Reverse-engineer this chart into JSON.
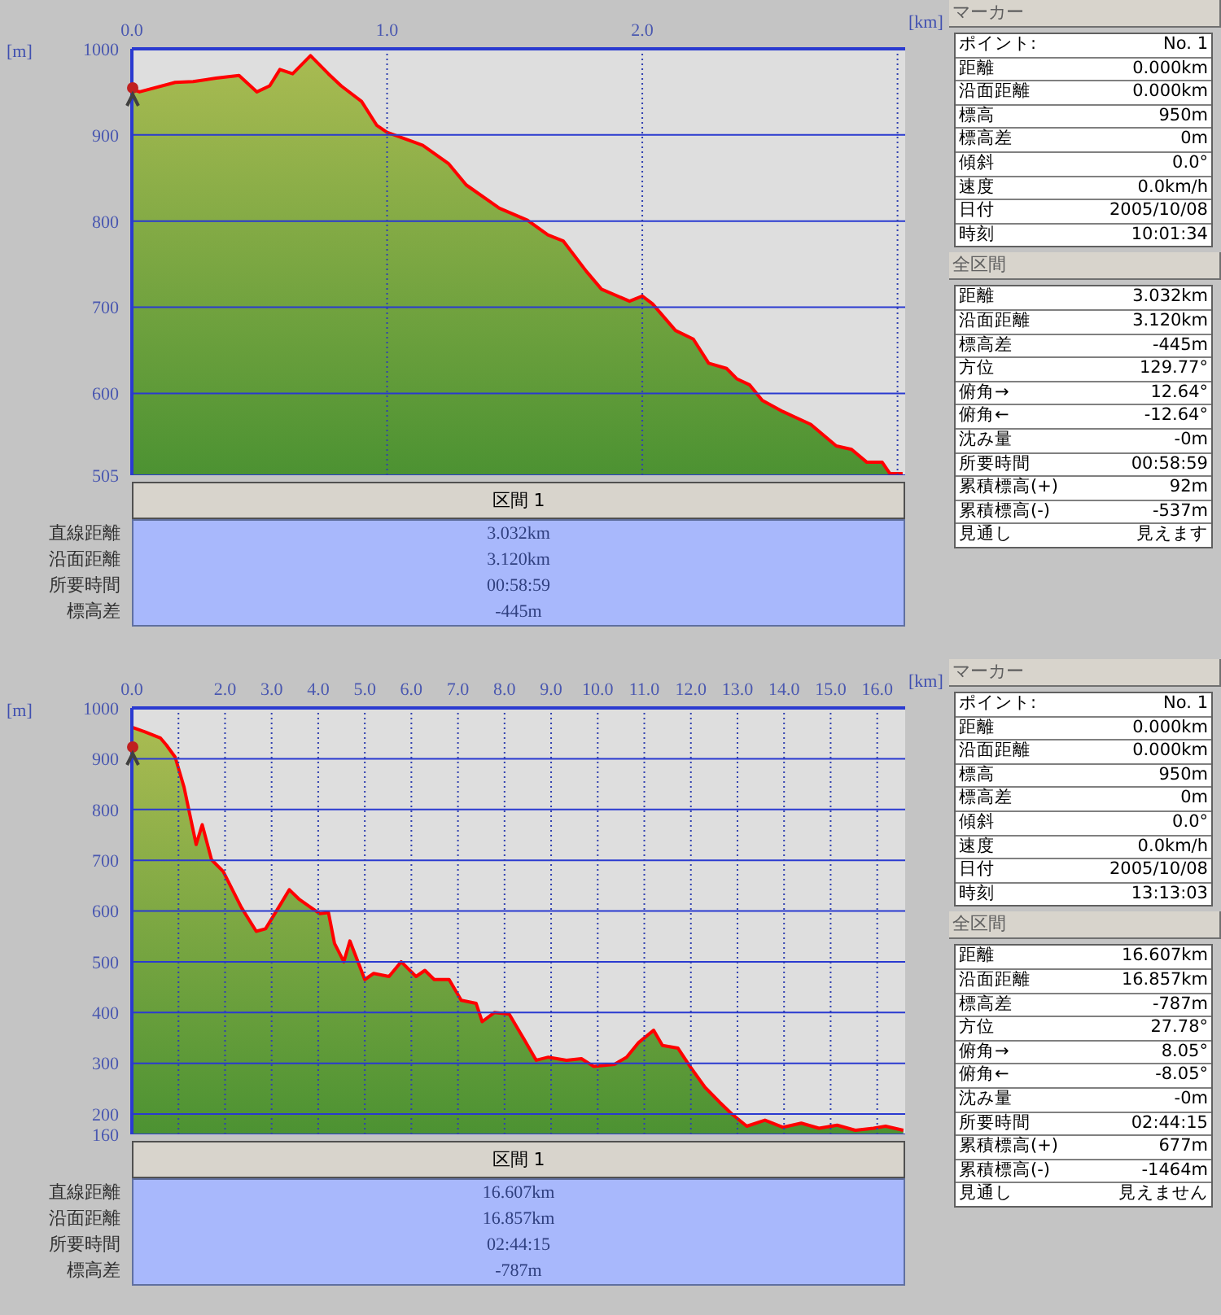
{
  "chart_data": [
    {
      "type": "area",
      "xlabel": "[km]",
      "ylabel": "[m]",
      "xlim": [
        0,
        3.03
      ],
      "ylim": [
        505,
        1000
      ],
      "xticks": [
        {
          "value": 0,
          "label": "0.0"
        },
        {
          "value": 1,
          "label": "1.0"
        },
        {
          "value": 2,
          "label": "2.0"
        },
        {
          "value": 3,
          "label": null
        }
      ],
      "yticks": [
        505,
        600,
        700,
        800,
        900,
        1000
      ],
      "grid": true,
      "series": [
        {
          "color": "#ff0000",
          "x": [
            0,
            0.03,
            0.17,
            0.24,
            0.33,
            0.42,
            0.49,
            0.54,
            0.58,
            0.63,
            0.7,
            0.77,
            0.82,
            0.9,
            0.96,
            1.0,
            1.14,
            1.24,
            1.31,
            1.44,
            1.55,
            1.63,
            1.69,
            1.78,
            1.84,
            1.95,
            2.0,
            2.04,
            2.13,
            2.2,
            2.26,
            2.33,
            2.37,
            2.42,
            2.47,
            2.55,
            2.66,
            2.76,
            2.82,
            2.88,
            2.94,
            2.97,
            3.02
          ],
          "values": [
            953,
            950,
            961,
            962,
            966,
            969,
            950,
            957,
            976,
            971,
            992,
            971,
            957,
            939,
            911,
            903,
            888,
            867,
            842,
            815,
            801,
            784,
            777,
            742,
            721,
            707,
            713,
            704,
            673,
            663,
            635,
            629,
            617,
            610,
            592,
            579,
            564,
            539,
            535,
            520,
            520,
            507,
            507
          ]
        }
      ],
      "annotations": [
        "区間 1",
        "直線距離",
        "3.032km",
        "沿面距離",
        "3.120km",
        "所要時間",
        "00:58:59",
        "標高差",
        "-445m"
      ]
    },
    {
      "type": "other",
      "title": "マーカー",
      "annotations": [
        "ポイント:",
        "No. 1",
        "距離",
        "0.000km",
        "沿面距離",
        "0.000km",
        "標高",
        "950m",
        "標高差",
        "0m",
        "傾斜",
        "0.0°",
        "速度",
        "0.0km/h",
        "日付",
        "2005/10/08",
        "時刻",
        "10:01:34"
      ]
    },
    {
      "type": "other",
      "title": "全区間",
      "annotations": [
        "距離",
        "3.032km",
        "沿面距離",
        "3.120km",
        "標高差",
        "-445m",
        "方位",
        "129.77°",
        "俯角→",
        "12.64°",
        "俯角←",
        "-12.64°",
        "沈み量",
        "-0m",
        "所要時間",
        "00:58:59",
        "累積標高(+)",
        "92m",
        "累積標高(-)",
        "-537m",
        "見通し",
        "見えます"
      ]
    },
    {
      "type": "area",
      "xlabel": "[km]",
      "ylabel": "[m]",
      "xlim": [
        0,
        16.6
      ],
      "ylim": [
        160,
        1000
      ],
      "xticks": [
        {
          "value": 0,
          "label": "0.0"
        },
        {
          "value": 1,
          "label": null
        },
        {
          "value": 2,
          "label": "2.0"
        },
        {
          "value": 3,
          "label": "3.0"
        },
        {
          "value": 4,
          "label": "4.0"
        },
        {
          "value": 5,
          "label": "5.0"
        },
        {
          "value": 6,
          "label": "6.0"
        },
        {
          "value": 7,
          "label": "7.0"
        },
        {
          "value": 8,
          "label": "8.0"
        },
        {
          "value": 9,
          "label": "9.0"
        },
        {
          "value": 10,
          "label": "10.0"
        },
        {
          "value": 11,
          "label": "11.0"
        },
        {
          "value": 12,
          "label": "12.0"
        },
        {
          "value": 13,
          "label": "13.0"
        },
        {
          "value": 14,
          "label": "14.0"
        },
        {
          "value": 15,
          "label": "15.0"
        },
        {
          "value": 16,
          "label": "16.0"
        }
      ],
      "yticks": [
        160,
        200,
        300,
        400,
        500,
        600,
        700,
        800,
        900,
        1000
      ],
      "grid": true,
      "series": [
        {
          "color": "#ff0000",
          "x": [
            0,
            0.28,
            0.61,
            0.74,
            0.93,
            1.12,
            1.38,
            1.51,
            1.71,
            1.96,
            2.35,
            2.67,
            2.87,
            3.19,
            3.38,
            3.58,
            3.84,
            4.03,
            4.22,
            4.35,
            4.55,
            4.68,
            5.0,
            5.19,
            5.52,
            5.78,
            6.1,
            6.29,
            6.49,
            6.81,
            7.07,
            7.39,
            7.52,
            7.78,
            8.1,
            8.42,
            8.68,
            8.94,
            9.33,
            9.65,
            9.91,
            10.36,
            10.62,
            10.88,
            11.2,
            11.39,
            11.72,
            11.98,
            12.3,
            12.62,
            12.88,
            13.2,
            13.59,
            13.98,
            14.37,
            14.75,
            15.14,
            15.53,
            15.92,
            16.18,
            16.56
          ],
          "values": [
            962,
            953,
            941,
            927,
            903,
            844,
            731,
            770,
            701,
            678,
            607,
            560,
            565,
            613,
            642,
            624,
            607,
            595,
            597,
            536,
            500,
            541,
            465,
            477,
            471,
            500,
            471,
            483,
            465,
            465,
            424,
            418,
            382,
            400,
            397,
            347,
            306,
            312,
            306,
            309,
            294,
            298,
            312,
            341,
            365,
            335,
            330,
            294,
            253,
            223,
            200,
            176,
            188,
            174,
            182,
            172,
            178,
            168,
            172,
            176,
            168
          ]
        }
      ],
      "annotations": [
        "区間 1",
        "直線距離",
        "16.607km",
        "沿面距離",
        "16.857km",
        "所要時間",
        "02:44:15",
        "標高差",
        "-787m"
      ]
    },
    {
      "type": "other",
      "title": "マーカー",
      "annotations": [
        "ポイント:",
        "No. 1",
        "距離",
        "0.000km",
        "沿面距離",
        "0.000km",
        "標高",
        "950m",
        "標高差",
        "0m",
        "傾斜",
        "0.0°",
        "速度",
        "0.0km/h",
        "日付",
        "2005/10/08",
        "時刻",
        "13:13:03"
      ]
    },
    {
      "type": "other",
      "title": "全区間",
      "annotations": [
        "距離",
        "16.607km",
        "沿面距離",
        "16.857km",
        "標高差",
        "-787m",
        "方位",
        "27.78°",
        "俯角→",
        "8.05°",
        "俯角←",
        "-8.05°",
        "沈み量",
        "-0m",
        "所要時間",
        "02:44:15",
        "累積標高(+)",
        "677m",
        "累積標高(-)",
        "-1464m",
        "見通し",
        "見えません"
      ]
    }
  ]
}
